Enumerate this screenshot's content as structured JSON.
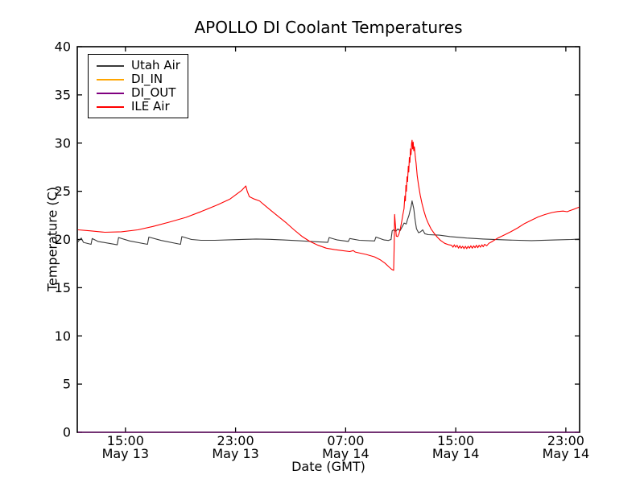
{
  "chart_data": {
    "type": "line",
    "title": "APOLLO DI Coolant Temperatures",
    "xlabel": "Date (GMT)",
    "ylabel": "Temperature (C)",
    "xlim": [
      11.5,
      48.0
    ],
    "ylim": [
      0,
      40
    ],
    "x_unit": "hours since May 13 00:00 GMT",
    "grid": false,
    "legend_position": "upper left",
    "yticks": [
      0,
      5,
      10,
      15,
      20,
      25,
      30,
      35,
      40
    ],
    "xticks": [
      {
        "pos": 15,
        "time": "15:00",
        "date": "May 13"
      },
      {
        "pos": 23,
        "time": "23:00",
        "date": "May 13"
      },
      {
        "pos": 31,
        "time": "07:00",
        "date": "May 14"
      },
      {
        "pos": 39,
        "time": "15:00",
        "date": "May 14"
      },
      {
        "pos": 47,
        "time": "23:00",
        "date": "May 14"
      }
    ],
    "series": [
      {
        "name": "Utah Air",
        "color": "#3a3a3a",
        "points": [
          [
            11.56,
            19.75
          ],
          [
            11.62,
            19.9
          ],
          [
            11.79,
            20.15
          ],
          [
            11.95,
            19.7
          ],
          [
            12.5,
            19.5
          ],
          [
            12.58,
            20.1
          ],
          [
            13.0,
            19.8
          ],
          [
            14.4,
            19.45
          ],
          [
            14.5,
            20.2
          ],
          [
            15.3,
            19.85
          ],
          [
            16.6,
            19.5
          ],
          [
            16.7,
            20.25
          ],
          [
            17.6,
            19.9
          ],
          [
            19.0,
            19.5
          ],
          [
            19.1,
            20.3
          ],
          [
            19.8,
            20.0
          ],
          [
            20.5,
            19.92
          ],
          [
            21.5,
            19.92
          ],
          [
            23.0,
            19.98
          ],
          [
            24.5,
            20.05
          ],
          [
            25.5,
            20.02
          ],
          [
            26.5,
            19.95
          ],
          [
            27.5,
            19.88
          ],
          [
            28.6,
            19.78
          ],
          [
            29.7,
            19.7
          ],
          [
            29.8,
            20.2
          ],
          [
            30.4,
            19.95
          ],
          [
            31.2,
            19.8
          ],
          [
            31.3,
            20.1
          ],
          [
            32.0,
            19.92
          ],
          [
            33.1,
            19.85
          ],
          [
            33.2,
            20.25
          ],
          [
            33.8,
            19.95
          ],
          [
            34.1,
            19.9
          ],
          [
            34.3,
            20.0
          ],
          [
            34.38,
            20.9
          ],
          [
            34.5,
            21.0
          ],
          [
            34.65,
            20.85
          ],
          [
            34.8,
            21.1
          ],
          [
            34.95,
            20.9
          ],
          [
            35.1,
            21.3
          ],
          [
            35.25,
            21.7
          ],
          [
            35.4,
            21.6
          ],
          [
            35.5,
            22.1
          ],
          [
            35.6,
            22.5
          ],
          [
            35.68,
            23.0
          ],
          [
            35.76,
            23.4
          ],
          [
            35.83,
            24.0
          ],
          [
            35.95,
            23.2
          ],
          [
            36.05,
            22.0
          ],
          [
            36.15,
            21.1
          ],
          [
            36.3,
            20.7
          ],
          [
            36.45,
            20.8
          ],
          [
            36.6,
            21.0
          ],
          [
            36.75,
            20.6
          ],
          [
            37.0,
            20.5
          ],
          [
            37.8,
            20.45
          ],
          [
            38.6,
            20.3
          ],
          [
            39.8,
            20.15
          ],
          [
            41.0,
            20.05
          ],
          [
            42.7,
            19.95
          ],
          [
            44.5,
            19.88
          ],
          [
            46.2,
            19.95
          ],
          [
            47.4,
            20.0
          ],
          [
            47.96,
            20.05
          ]
        ]
      },
      {
        "name": "DI_IN",
        "color": "#ffa500",
        "points": [
          [
            11.56,
            0
          ],
          [
            47.96,
            0
          ]
        ]
      },
      {
        "name": "DI_OUT",
        "color": "#800080",
        "points": [
          [
            11.56,
            0
          ],
          [
            47.96,
            0
          ]
        ]
      },
      {
        "name": "ILE Air",
        "color": "#ff0000",
        "points": [
          [
            11.56,
            21.0
          ],
          [
            12.4,
            20.9
          ],
          [
            13.5,
            20.75
          ],
          [
            14.7,
            20.8
          ],
          [
            15.9,
            21.0
          ],
          [
            17.0,
            21.35
          ],
          [
            18.2,
            21.8
          ],
          [
            19.4,
            22.3
          ],
          [
            20.5,
            22.9
          ],
          [
            21.7,
            23.6
          ],
          [
            22.6,
            24.2
          ],
          [
            23.45,
            25.1
          ],
          [
            23.75,
            25.55
          ],
          [
            23.85,
            25.0
          ],
          [
            24.0,
            24.45
          ],
          [
            24.35,
            24.2
          ],
          [
            24.75,
            24.0
          ],
          [
            24.95,
            23.75
          ],
          [
            25.5,
            23.1
          ],
          [
            26.1,
            22.4
          ],
          [
            26.7,
            21.7
          ],
          [
            27.25,
            21.0
          ],
          [
            27.85,
            20.3
          ],
          [
            28.4,
            19.8
          ],
          [
            29.0,
            19.4
          ],
          [
            29.6,
            19.1
          ],
          [
            30.2,
            18.95
          ],
          [
            30.75,
            18.85
          ],
          [
            31.3,
            18.75
          ],
          [
            31.55,
            18.85
          ],
          [
            31.7,
            18.7
          ],
          [
            32.5,
            18.45
          ],
          [
            33.1,
            18.2
          ],
          [
            33.5,
            17.9
          ],
          [
            33.85,
            17.55
          ],
          [
            34.15,
            17.15
          ],
          [
            34.35,
            16.9
          ],
          [
            34.49,
            16.8
          ],
          [
            34.53,
            19.5
          ],
          [
            34.56,
            22.6
          ],
          [
            34.62,
            21.4
          ],
          [
            34.68,
            20.35
          ],
          [
            34.78,
            20.3
          ],
          [
            34.88,
            20.6
          ],
          [
            34.98,
            21.15
          ],
          [
            35.08,
            21.9
          ],
          [
            35.16,
            22.6
          ],
          [
            35.24,
            23.2
          ],
          [
            35.3,
            24.5
          ],
          [
            35.34,
            24.0
          ],
          [
            35.38,
            25.6
          ],
          [
            35.42,
            25.0
          ],
          [
            35.46,
            26.5
          ],
          [
            35.5,
            26.0
          ],
          [
            35.55,
            27.6
          ],
          [
            35.59,
            27.0
          ],
          [
            35.63,
            28.5
          ],
          [
            35.67,
            28.0
          ],
          [
            35.71,
            29.4
          ],
          [
            35.75,
            28.8
          ],
          [
            35.79,
            30.0
          ],
          [
            35.83,
            30.3
          ],
          [
            35.87,
            29.4
          ],
          [
            35.91,
            30.1
          ],
          [
            35.95,
            29.2
          ],
          [
            36.0,
            29.6
          ],
          [
            36.06,
            28.6
          ],
          [
            36.12,
            27.9
          ],
          [
            36.2,
            26.6
          ],
          [
            36.3,
            25.6
          ],
          [
            36.42,
            24.6
          ],
          [
            36.55,
            23.7
          ],
          [
            36.7,
            22.9
          ],
          [
            36.85,
            22.2
          ],
          [
            37.0,
            21.7
          ],
          [
            37.2,
            21.1
          ],
          [
            37.4,
            20.7
          ],
          [
            37.65,
            20.25
          ],
          [
            37.9,
            19.9
          ],
          [
            38.2,
            19.6
          ],
          [
            38.5,
            19.45
          ],
          [
            38.7,
            19.4
          ],
          [
            38.8,
            19.2
          ],
          [
            38.9,
            19.45
          ],
          [
            39.0,
            19.2
          ],
          [
            39.1,
            19.4
          ],
          [
            39.2,
            19.1
          ],
          [
            39.3,
            19.35
          ],
          [
            39.4,
            19.1
          ],
          [
            39.5,
            19.3
          ],
          [
            39.6,
            19.05
          ],
          [
            39.7,
            19.3
          ],
          [
            39.8,
            19.05
          ],
          [
            39.9,
            19.3
          ],
          [
            40.0,
            19.1
          ],
          [
            40.1,
            19.35
          ],
          [
            40.2,
            19.1
          ],
          [
            40.3,
            19.35
          ],
          [
            40.4,
            19.15
          ],
          [
            40.5,
            19.4
          ],
          [
            40.6,
            19.15
          ],
          [
            40.7,
            19.4
          ],
          [
            40.8,
            19.2
          ],
          [
            40.9,
            19.45
          ],
          [
            41.0,
            19.25
          ],
          [
            41.1,
            19.5
          ],
          [
            41.25,
            19.35
          ],
          [
            41.4,
            19.6
          ],
          [
            41.6,
            19.75
          ],
          [
            42.0,
            20.1
          ],
          [
            42.5,
            20.45
          ],
          [
            43.0,
            20.8
          ],
          [
            43.5,
            21.2
          ],
          [
            44.0,
            21.65
          ],
          [
            44.5,
            22.0
          ],
          [
            45.0,
            22.35
          ],
          [
            45.5,
            22.6
          ],
          [
            46.0,
            22.8
          ],
          [
            46.4,
            22.9
          ],
          [
            46.8,
            22.95
          ],
          [
            47.1,
            22.88
          ],
          [
            47.3,
            23.0
          ],
          [
            47.6,
            23.15
          ],
          [
            47.96,
            23.35
          ]
        ]
      }
    ],
    "frame_color": "#000000"
  }
}
